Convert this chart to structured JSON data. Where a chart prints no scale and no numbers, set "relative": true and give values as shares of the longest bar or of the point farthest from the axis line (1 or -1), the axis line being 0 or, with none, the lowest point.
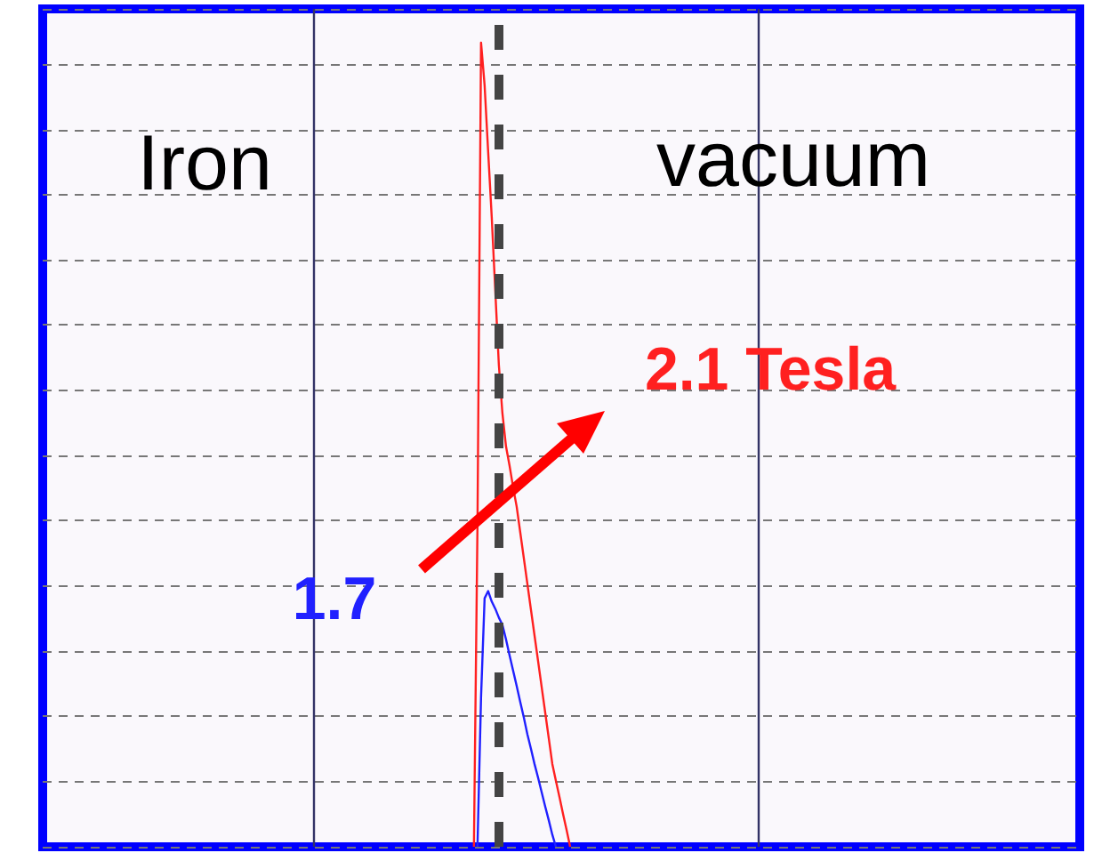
{
  "chart_data": {
    "type": "line",
    "relative": true,
    "grid": true,
    "marker": "none",
    "line_style": "solid",
    "categories": [
      null,
      null,
      null,
      null,
      null,
      null,
      null,
      null,
      null,
      null,
      null,
      null,
      null,
      null,
      null,
      null,
      null,
      null,
      null,
      null,
      null,
      null,
      null,
      null,
      null,
      null,
      null,
      null,
      null,
      null,
      null,
      null,
      null,
      null,
      null,
      null,
      null,
      null,
      null,
      null,
      null,
      null,
      null,
      null,
      null,
      null,
      null,
      null,
      null,
      null,
      null,
      null,
      null,
      null,
      null,
      null,
      null,
      null,
      null,
      null,
      null,
      null,
      null,
      null,
      null,
      null,
      null,
      null,
      null,
      null,
      null,
      null,
      null,
      null,
      null,
      null,
      null,
      null,
      null,
      null,
      null,
      null,
      null,
      null,
      null,
      null,
      null,
      null,
      null,
      null,
      null,
      null,
      null,
      null,
      null,
      null,
      null,
      null,
      null,
      null,
      null,
      null,
      null,
      null,
      null,
      null,
      null,
      null,
      null,
      null,
      null,
      null,
      null,
      null,
      null,
      null,
      null,
      null,
      null,
      null,
      null,
      null,
      null,
      null,
      null,
      null,
      null,
      null,
      null,
      null,
      null,
      null,
      null,
      null,
      null,
      null,
      null,
      null,
      null,
      null,
      null,
      null,
      null,
      null,
      null,
      null,
      null,
      null,
      null,
      null,
      null,
      null,
      null,
      null,
      null,
      null,
      null,
      null,
      null,
      null,
      null,
      null,
      null,
      null,
      null,
      null,
      null,
      null,
      null,
      null,
      null,
      null,
      null,
      null,
      null,
      null,
      null,
      null,
      null,
      null,
      null,
      null,
      null,
      null,
      null,
      null,
      null,
      null,
      null,
      null,
      null,
      null,
      null,
      null,
      null,
      null,
      null,
      null,
      null,
      null,
      null,
      null,
      null,
      null,
      null,
      null,
      null,
      null,
      null,
      null,
      null,
      null,
      null,
      null,
      null,
      null,
      null,
      null,
      null,
      null,
      null,
      null,
      null,
      null,
      null,
      null,
      null,
      null,
      null,
      null,
      null,
      null,
      null,
      null,
      null,
      null,
      null,
      null,
      null,
      null,
      null,
      null,
      null,
      null,
      null,
      null,
      null,
      null,
      null,
      null,
      null,
      null,
      null,
      null,
      null,
      null,
      null,
      null,
      null,
      null,
      null,
      null,
      null,
      null,
      null,
      null,
      null,
      null,
      null,
      null,
      null,
      null,
      null,
      null,
      null,
      null,
      null,
      null,
      null,
      null,
      null,
      null,
      null,
      null,
      null,
      null,
      null,
      null,
      null,
      null,
      null,
      null
    ],
    "series": [
      {
        "color": "#ff2020",
        "values": [
          null,
          null,
          null,
          null,
          null,
          null,
          null,
          null,
          null,
          null,
          null,
          null,
          null,
          null,
          null,
          null,
          null,
          null,
          null,
          null,
          null,
          null,
          null,
          null,
          null,
          null,
          null,
          null,
          null,
          null,
          null,
          null,
          null,
          null,
          null,
          null,
          null,
          null,
          null,
          null,
          null,
          null,
          null,
          null,
          null,
          null,
          null,
          null,
          null,
          null,
          null,
          null,
          null,
          null,
          null,
          null,
          null,
          null,
          null,
          null,
          null,
          null,
          null,
          null,
          null,
          null,
          null,
          null,
          null,
          null,
          null,
          null,
          null,
          null,
          null,
          null,
          null,
          null,
          null,
          null,
          null,
          null,
          null,
          null,
          null,
          null,
          null,
          null,
          null,
          null,
          null,
          null,
          null,
          null,
          null,
          null,
          null,
          null,
          null,
          null,
          null,
          null,
          null,
          null,
          null,
          null,
          null,
          null,
          null,
          null,
          null,
          null,
          null,
          null,
          null,
          null,
          null,
          null,
          null,
          null,
          null,
          0,
          0.4,
          1,
          0.947,
          0.864,
          0.783,
          0.691,
          0.599,
          0.539,
          0.498,
          0.474,
          0.447,
          0.423,
          0.391,
          0.359,
          0.327,
          0.295,
          0.263,
          0.231,
          0.199,
          0.167,
          0.135,
          0.103,
          0.082,
          0.062,
          0.041,
          0.021,
          0,
          null,
          null,
          null,
          null,
          null,
          null,
          null,
          null,
          null,
          null,
          null,
          null,
          null,
          null,
          null,
          null,
          null,
          null,
          null,
          null,
          null,
          null,
          null,
          null,
          null,
          null,
          null,
          null,
          null,
          null,
          null,
          null,
          null,
          null,
          null,
          null,
          null,
          null,
          null,
          null,
          null,
          null,
          null,
          null,
          null,
          null,
          null,
          null,
          null,
          null,
          null,
          null,
          null,
          null,
          null,
          null,
          null,
          null,
          null,
          null,
          null,
          null,
          null,
          null,
          null,
          null,
          null,
          null,
          null,
          null,
          null,
          null,
          null,
          null,
          null,
          null,
          null,
          null,
          null,
          null,
          null,
          null,
          null,
          null,
          null,
          null,
          null,
          null,
          null,
          null,
          null,
          null,
          null,
          null,
          null,
          null,
          null,
          null,
          null,
          null,
          null,
          null,
          null,
          null,
          null,
          null,
          null,
          null,
          null,
          null,
          null,
          null,
          null,
          null,
          null,
          null,
          null,
          null,
          null,
          null,
          null,
          null,
          null,
          null,
          null,
          null,
          null,
          null,
          null,
          null,
          null,
          null,
          null,
          null,
          null,
          null,
          null,
          null,
          null,
          null,
          null,
          null,
          null
        ]
      },
      {
        "color": "#2020ff",
        "values": [
          null,
          null,
          null,
          null,
          null,
          null,
          null,
          null,
          null,
          null,
          null,
          null,
          null,
          null,
          null,
          null,
          null,
          null,
          null,
          null,
          null,
          null,
          null,
          null,
          null,
          null,
          null,
          null,
          null,
          null,
          null,
          null,
          null,
          null,
          null,
          null,
          null,
          null,
          null,
          null,
          null,
          null,
          null,
          null,
          null,
          null,
          null,
          null,
          null,
          null,
          null,
          null,
          null,
          null,
          null,
          null,
          null,
          null,
          null,
          null,
          null,
          null,
          null,
          null,
          null,
          null,
          null,
          null,
          null,
          null,
          null,
          null,
          null,
          null,
          null,
          null,
          null,
          null,
          null,
          null,
          null,
          null,
          null,
          null,
          null,
          null,
          null,
          null,
          null,
          null,
          null,
          null,
          null,
          null,
          null,
          null,
          null,
          null,
          null,
          null,
          null,
          null,
          null,
          null,
          null,
          null,
          null,
          null,
          null,
          null,
          null,
          null,
          null,
          null,
          null,
          null,
          null,
          null,
          null,
          null,
          null,
          null,
          0,
          0.186,
          0.309,
          0.318,
          0.305,
          0.296,
          0.285,
          0.276,
          0.258,
          0.238,
          0.219,
          0.2,
          0.18,
          0.161,
          0.14,
          0.122,
          0.103,
          0.086,
          0.068,
          0.05,
          0.033,
          0.015,
          0,
          null,
          null,
          null,
          null,
          null,
          null,
          null,
          null,
          null,
          null,
          null,
          null,
          null,
          null,
          null,
          null,
          null,
          null,
          null,
          null,
          null,
          null,
          null,
          null,
          null,
          null,
          null,
          null,
          null,
          null,
          null,
          null,
          null,
          null,
          null,
          null,
          null,
          null,
          null,
          null,
          null,
          null,
          null,
          null,
          null,
          null,
          null,
          null,
          null,
          null,
          null,
          null,
          null,
          null,
          null,
          null,
          null,
          null,
          null,
          null,
          null,
          null,
          null,
          null,
          null,
          null,
          null,
          null,
          null,
          null,
          null,
          null,
          null,
          null,
          null,
          null,
          null,
          null,
          null,
          null,
          null,
          null,
          null,
          null,
          null,
          null,
          null,
          null,
          null,
          null,
          null,
          null,
          null,
          null,
          null,
          null,
          null,
          null,
          null,
          null,
          null,
          null,
          null,
          null,
          null,
          null,
          null,
          null,
          null,
          null,
          null,
          null,
          null,
          null,
          null,
          null,
          null,
          null,
          null,
          null,
          null,
          null,
          null,
          null,
          null,
          null,
          null,
          null,
          null,
          null,
          null,
          null,
          null,
          null,
          null,
          null,
          null,
          null,
          null,
          null,
          null,
          null,
          null,
          null,
          null,
          null,
          null
        ]
      }
    ],
    "ref_lines": [
      {
        "axis": "x",
        "color": "#444444",
        "line_style": "dashed"
      }
    ],
    "annotations": [
      "Iron",
      "vacuum",
      "2.1 Tesla",
      "1.7"
    ]
  }
}
